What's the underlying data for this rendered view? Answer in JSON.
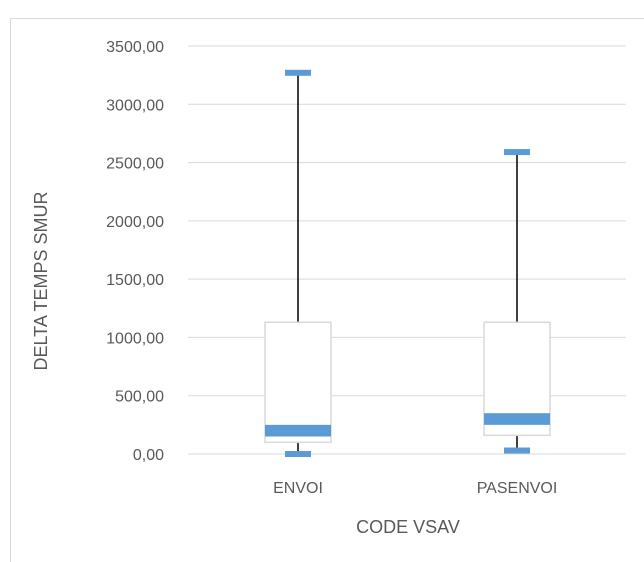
{
  "chart_data": {
    "type": "boxplot",
    "xlabel": "CODE VSAV",
    "ylabel": "DELTA TEMPS SMUR",
    "ylim": [
      0,
      3500
    ],
    "yticks": [
      0,
      500,
      1000,
      1500,
      2000,
      2500,
      3000,
      3500
    ],
    "ytick_labels": [
      "0,00",
      "500,00",
      "1000,00",
      "1500,00",
      "2000,00",
      "2500,00",
      "3000,00",
      "3500,00"
    ],
    "categories": [
      "ENVOI",
      "PASENVOI"
    ],
    "series": [
      {
        "category": "ENVOI",
        "min": 0,
        "q1": 100,
        "median_low": 150,
        "median_high": 250,
        "q3": 1130,
        "max": 3270
      },
      {
        "category": "PASENVOI",
        "min": 30,
        "q1": 160,
        "median_low": 250,
        "median_high": 350,
        "q3": 1130,
        "max": 2590
      }
    ],
    "grid": true,
    "colors": {
      "accent": "#5b9bd5",
      "box_edge": "#d9d9d9",
      "whisker": "#000000",
      "grid": "#d9d9d9",
      "text": "#595959"
    }
  }
}
